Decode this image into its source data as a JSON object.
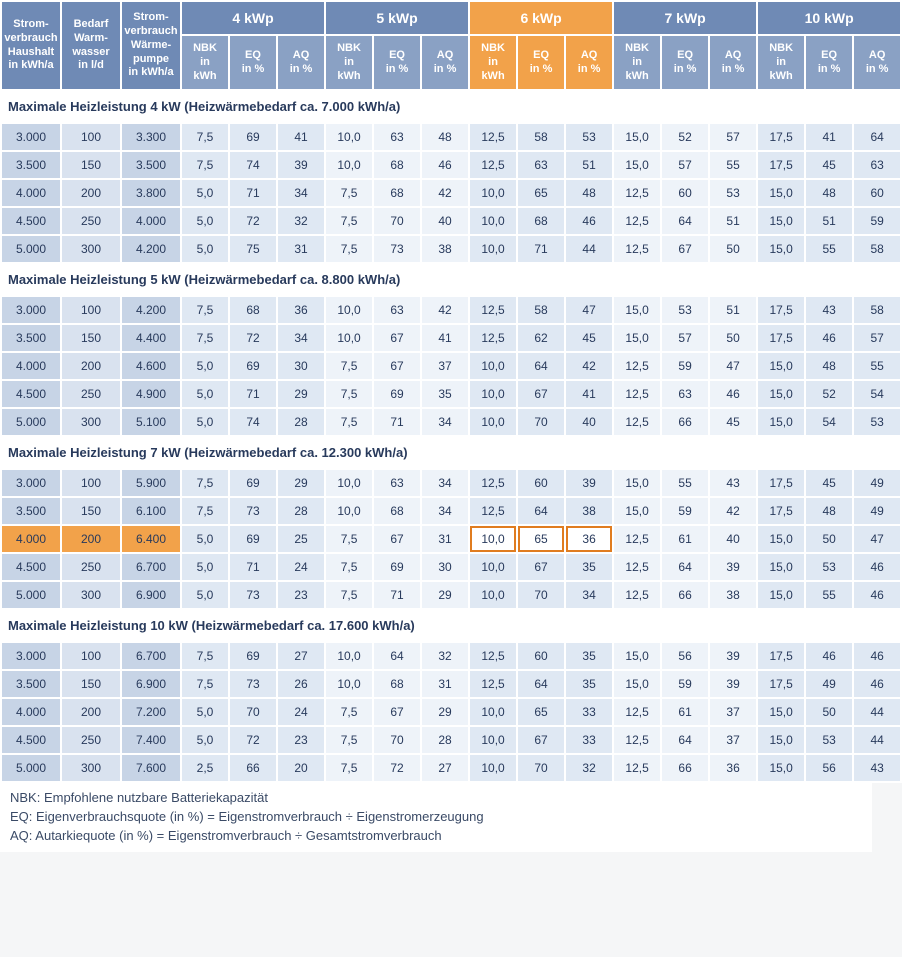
{
  "header": {
    "leads": [
      "Strom-\nverbrauch\nHaushalt\nin kWh/a",
      "Bedarf\nWarm-\nwasser\nin l/d",
      "Strom-\nverbrauch\nWärme-\npumpe\nin kWh/a"
    ],
    "kwp": [
      "4 kWp",
      "5 kWp",
      "6 kWp",
      "7 kWp",
      "10 kWp"
    ],
    "kwp_hi": 2,
    "subs": [
      "NBK\nin\nkWh",
      "EQ\nin %",
      "AQ\nin %"
    ]
  },
  "sections": [
    {
      "title": "Maximale Heizleistung 4 kW (Heizwärmebedarf ca. 7.000 kWh/a)",
      "rows": [
        [
          "3.000",
          "100",
          "3.300",
          "7,5",
          "69",
          "41",
          "10,0",
          "63",
          "48",
          "12,5",
          "58",
          "53",
          "15,0",
          "52",
          "57",
          "17,5",
          "41",
          "64"
        ],
        [
          "3.500",
          "150",
          "3.500",
          "7,5",
          "74",
          "39",
          "10,0",
          "68",
          "46",
          "12,5",
          "63",
          "51",
          "15,0",
          "57",
          "55",
          "17,5",
          "45",
          "63"
        ],
        [
          "4.000",
          "200",
          "3.800",
          "5,0",
          "71",
          "34",
          "7,5",
          "68",
          "42",
          "10,0",
          "65",
          "48",
          "12,5",
          "60",
          "53",
          "15,0",
          "48",
          "60"
        ],
        [
          "4.500",
          "250",
          "4.000",
          "5,0",
          "72",
          "32",
          "7,5",
          "70",
          "40",
          "10,0",
          "68",
          "46",
          "12,5",
          "64",
          "51",
          "15,0",
          "51",
          "59"
        ],
        [
          "5.000",
          "300",
          "4.200",
          "5,0",
          "75",
          "31",
          "7,5",
          "73",
          "38",
          "10,0",
          "71",
          "44",
          "12,5",
          "67",
          "50",
          "15,0",
          "55",
          "58"
        ]
      ]
    },
    {
      "title": "Maximale Heizleistung 5 kW (Heizwärmebedarf ca. 8.800 kWh/a)",
      "rows": [
        [
          "3.000",
          "100",
          "4.200",
          "7,5",
          "68",
          "36",
          "10,0",
          "63",
          "42",
          "12,5",
          "58",
          "47",
          "15,0",
          "53",
          "51",
          "17,5",
          "43",
          "58"
        ],
        [
          "3.500",
          "150",
          "4.400",
          "7,5",
          "72",
          "34",
          "10,0",
          "67",
          "41",
          "12,5",
          "62",
          "45",
          "15,0",
          "57",
          "50",
          "17,5",
          "46",
          "57"
        ],
        [
          "4.000",
          "200",
          "4.600",
          "5,0",
          "69",
          "30",
          "7,5",
          "67",
          "37",
          "10,0",
          "64",
          "42",
          "12,5",
          "59",
          "47",
          "15,0",
          "48",
          "55"
        ],
        [
          "4.500",
          "250",
          "4.900",
          "5,0",
          "71",
          "29",
          "7,5",
          "69",
          "35",
          "10,0",
          "67",
          "41",
          "12,5",
          "63",
          "46",
          "15,0",
          "52",
          "54"
        ],
        [
          "5.000",
          "300",
          "5.100",
          "5,0",
          "74",
          "28",
          "7,5",
          "71",
          "34",
          "10,0",
          "70",
          "40",
          "12,5",
          "66",
          "45",
          "15,0",
          "54",
          "53"
        ]
      ]
    },
    {
      "title": "Maximale Heizleistung 7 kW (Heizwärmebedarf ca. 12.300 kWh/a)",
      "hiRow": 2,
      "rows": [
        [
          "3.000",
          "100",
          "5.900",
          "7,5",
          "69",
          "29",
          "10,0",
          "63",
          "34",
          "12,5",
          "60",
          "39",
          "15,0",
          "55",
          "43",
          "17,5",
          "45",
          "49"
        ],
        [
          "3.500",
          "150",
          "6.100",
          "7,5",
          "73",
          "28",
          "10,0",
          "68",
          "34",
          "12,5",
          "64",
          "38",
          "15,0",
          "59",
          "42",
          "17,5",
          "48",
          "49"
        ],
        [
          "4.000",
          "200",
          "6.400",
          "5,0",
          "69",
          "25",
          "7,5",
          "67",
          "31",
          "10,0",
          "65",
          "36",
          "12,5",
          "61",
          "40",
          "15,0",
          "50",
          "47"
        ],
        [
          "4.500",
          "250",
          "6.700",
          "5,0",
          "71",
          "24",
          "7,5",
          "69",
          "30",
          "10,0",
          "67",
          "35",
          "12,5",
          "64",
          "39",
          "15,0",
          "53",
          "46"
        ],
        [
          "5.000",
          "300",
          "6.900",
          "5,0",
          "73",
          "23",
          "7,5",
          "71",
          "29",
          "10,0",
          "70",
          "34",
          "12,5",
          "66",
          "38",
          "15,0",
          "55",
          "46"
        ]
      ]
    },
    {
      "title": "Maximale Heizleistung 10 kW (Heizwärmebedarf ca. 17.600 kWh/a)",
      "rows": [
        [
          "3.000",
          "100",
          "6.700",
          "7,5",
          "69",
          "27",
          "10,0",
          "64",
          "32",
          "12,5",
          "60",
          "35",
          "15,0",
          "56",
          "39",
          "17,5",
          "46",
          "46"
        ],
        [
          "3.500",
          "150",
          "6.900",
          "7,5",
          "73",
          "26",
          "10,0",
          "68",
          "31",
          "12,5",
          "64",
          "35",
          "15,0",
          "59",
          "39",
          "17,5",
          "49",
          "46"
        ],
        [
          "4.000",
          "200",
          "7.200",
          "5,0",
          "70",
          "24",
          "7,5",
          "67",
          "29",
          "10,0",
          "65",
          "33",
          "12,5",
          "61",
          "37",
          "15,0",
          "50",
          "44"
        ],
        [
          "4.500",
          "250",
          "7.400",
          "5,0",
          "72",
          "23",
          "7,5",
          "70",
          "28",
          "10,0",
          "67",
          "33",
          "12,5",
          "64",
          "37",
          "15,0",
          "53",
          "44"
        ],
        [
          "5.000",
          "300",
          "7.600",
          "2,5",
          "66",
          "20",
          "7,5",
          "72",
          "27",
          "10,0",
          "70",
          "32",
          "12,5",
          "66",
          "36",
          "15,0",
          "56",
          "43"
        ]
      ]
    }
  ],
  "legend": [
    "NBK: Empfohlene nutzbare Batteriekapazität",
    "EQ: Eigenverbrauchsquote (in %) = Eigenstromverbrauch ÷ Eigenstromerzeugung",
    "AQ: Autarkiequote (in %) = Eigenstromverbrauch ÷ Gesamtstromverbrauch"
  ]
}
